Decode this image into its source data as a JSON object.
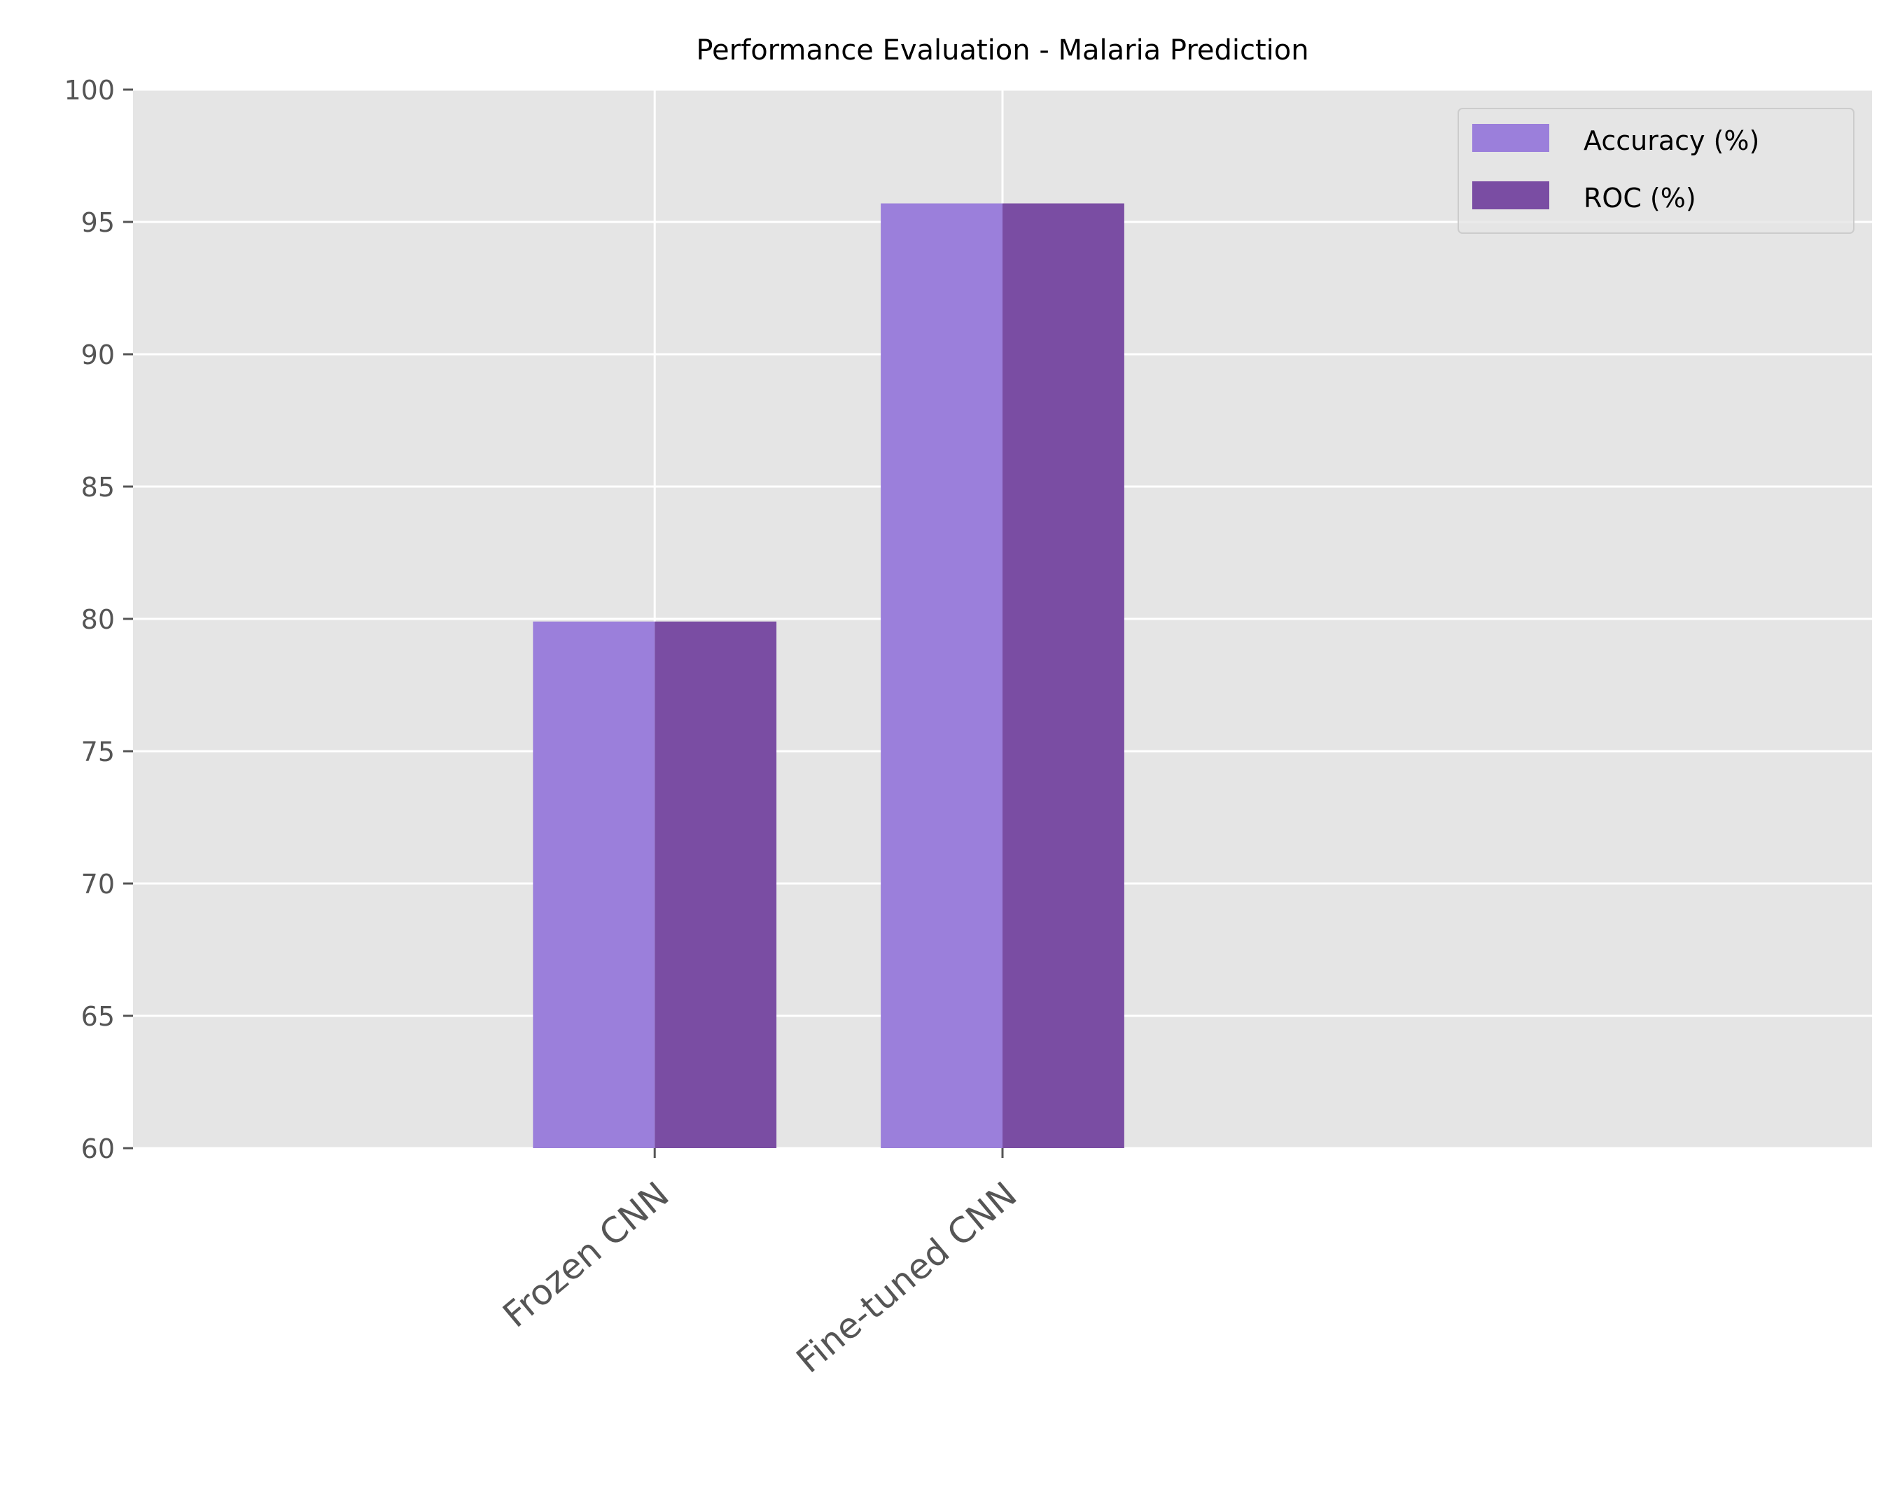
{
  "chart_data": {
    "type": "bar",
    "title": "Performance Evaluation - Malaria Prediction",
    "xlabel": "",
    "ylabel": "",
    "categories": [
      "Frozen CNN",
      "Fine-tuned CNN"
    ],
    "series": [
      {
        "name": "Accuracy (%)",
        "values": [
          79.9,
          95.7
        ],
        "color": "#9b7fdb"
      },
      {
        "name": "ROC (%)",
        "values": [
          79.9,
          95.7
        ],
        "color": "#7a4da3"
      }
    ],
    "ylim": [
      60,
      100
    ],
    "yticks": [
      60,
      65,
      70,
      75,
      80,
      85,
      90,
      95,
      100
    ],
    "xlim": [
      -1.5,
      3.5
    ],
    "grid": true,
    "legend_position": "top-right",
    "colors": {
      "axes_background": "#e5e5e5",
      "grid": "#ffffff",
      "tick_label": "#555555",
      "title": "#000000"
    }
  }
}
